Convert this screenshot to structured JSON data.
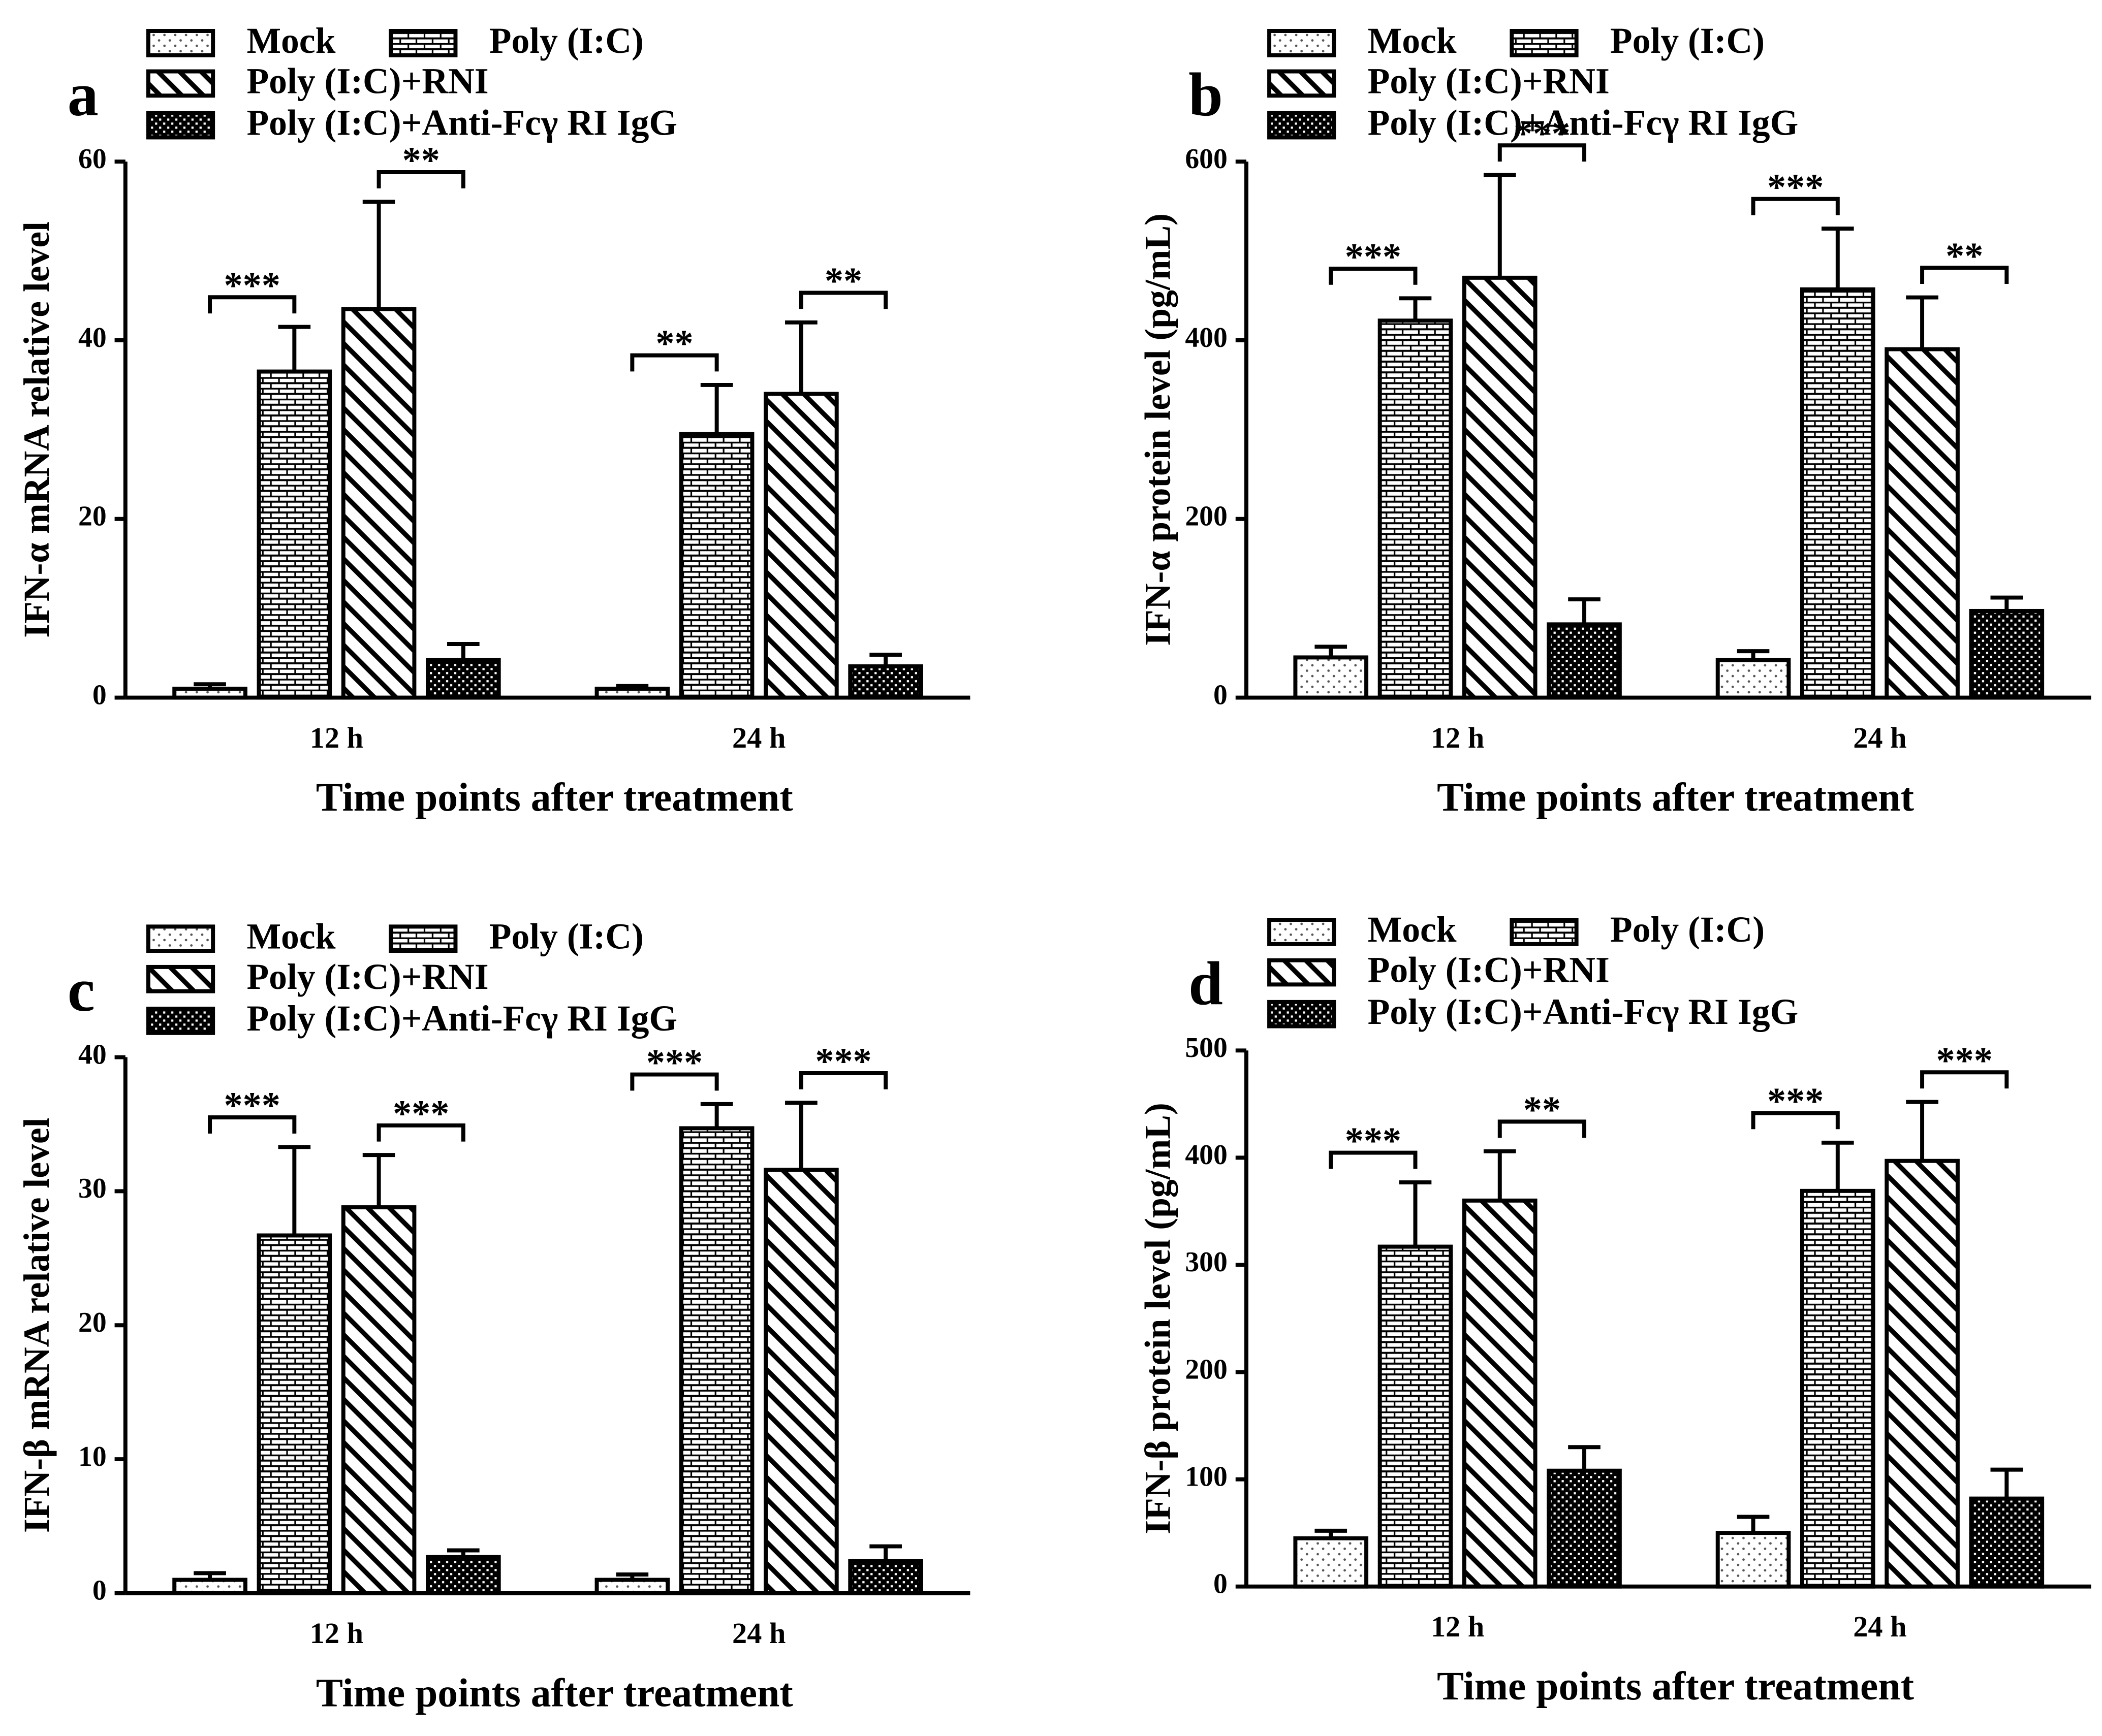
{
  "chart_data": [
    {
      "type": "bar",
      "label": "a",
      "ylabel": "IFN-α mRNA relative level",
      "xlabel": "Time points after treatment",
      "categories": [
        "12 h",
        "24 h"
      ],
      "series": [
        {
          "name": "Mock",
          "values": [
            1,
            1
          ],
          "errors": [
            0.5,
            0.3
          ]
        },
        {
          "name": "Poly (I:C)",
          "values": [
            36.5,
            29.5
          ],
          "errors": [
            5,
            5.5
          ]
        },
        {
          "name": "Poly (I:C)+RNI",
          "values": [
            43.5,
            34
          ],
          "errors": [
            12,
            8
          ]
        },
        {
          "name": "Poly (I:C)+Anti-Fcγ  RI IgG",
          "values": [
            4.2,
            3.5
          ],
          "errors": [
            1.8,
            1.3
          ]
        }
      ],
      "annotations": [
        [
          "***",
          "**"
        ],
        [
          "**",
          "**"
        ]
      ],
      "ylim": [
        0,
        60
      ],
      "yticks": [
        0,
        20,
        40,
        60
      ]
    },
    {
      "type": "bar",
      "label": "b",
      "ylabel": "IFN-α protein level (pg/mL)",
      "xlabel": "Time points after treatment",
      "categories": [
        "12 h",
        "24 h"
      ],
      "series": [
        {
          "name": "Mock",
          "values": [
            45,
            42
          ],
          "errors": [
            12,
            10
          ]
        },
        {
          "name": "Poly (I:C)",
          "values": [
            422,
            457
          ],
          "errors": [
            25,
            68
          ]
        },
        {
          "name": "Poly (I:C)+RNI",
          "values": [
            470,
            390
          ],
          "errors": [
            115,
            58
          ]
        },
        {
          "name": "Poly (I:C)+Anti-Fcγ  RI IgG",
          "values": [
            82,
            97
          ],
          "errors": [
            28,
            15
          ]
        }
      ],
      "annotations": [
        [
          "***",
          "***"
        ],
        [
          "***",
          "**"
        ]
      ],
      "ylim": [
        0,
        600
      ],
      "yticks": [
        0,
        200,
        400,
        600
      ]
    },
    {
      "type": "bar",
      "label": "c",
      "ylabel": "IFN-β mRNA relative level",
      "xlabel": "Time points after treatment",
      "categories": [
        "12 h",
        "24 h"
      ],
      "series": [
        {
          "name": "Mock",
          "values": [
            1,
            1
          ],
          "errors": [
            0.5,
            0.4
          ]
        },
        {
          "name": "Poly (I:C)",
          "values": [
            26.7,
            34.7
          ],
          "errors": [
            6.6,
            1.8
          ]
        },
        {
          "name": "Poly (I:C)+RNI",
          "values": [
            28.8,
            31.6
          ],
          "errors": [
            3.9,
            5
          ]
        },
        {
          "name": "Poly (I:C)+Anti-Fcγ  RI IgG",
          "values": [
            2.7,
            2.4
          ],
          "errors": [
            0.5,
            1.1
          ]
        }
      ],
      "annotations": [
        [
          "***",
          "***"
        ],
        [
          "***",
          "***"
        ]
      ],
      "ylim": [
        0,
        40
      ],
      "yticks": [
        0,
        10,
        20,
        30,
        40
      ]
    },
    {
      "type": "bar",
      "label": "d",
      "ylabel": "IFN-β protein level (pg/mL)",
      "xlabel": "Time points after treatment",
      "categories": [
        "12 h",
        "24 h"
      ],
      "series": [
        {
          "name": "Mock",
          "values": [
            45,
            50
          ],
          "errors": [
            7,
            15
          ]
        },
        {
          "name": "Poly (I:C)",
          "values": [
            317,
            369
          ],
          "errors": [
            60,
            45
          ]
        },
        {
          "name": "Poly (I:C)+RNI",
          "values": [
            360,
            397
          ],
          "errors": [
            46,
            55
          ]
        },
        {
          "name": "Poly (I:C)+Anti-Fcγ  RI IgG",
          "values": [
            108,
            82
          ],
          "errors": [
            22,
            27
          ]
        }
      ],
      "annotations": [
        [
          "***",
          "**"
        ],
        [
          "***",
          "***"
        ]
      ],
      "ylim": [
        0,
        500
      ],
      "yticks": [
        0,
        100,
        200,
        300,
        400,
        500
      ]
    }
  ]
}
